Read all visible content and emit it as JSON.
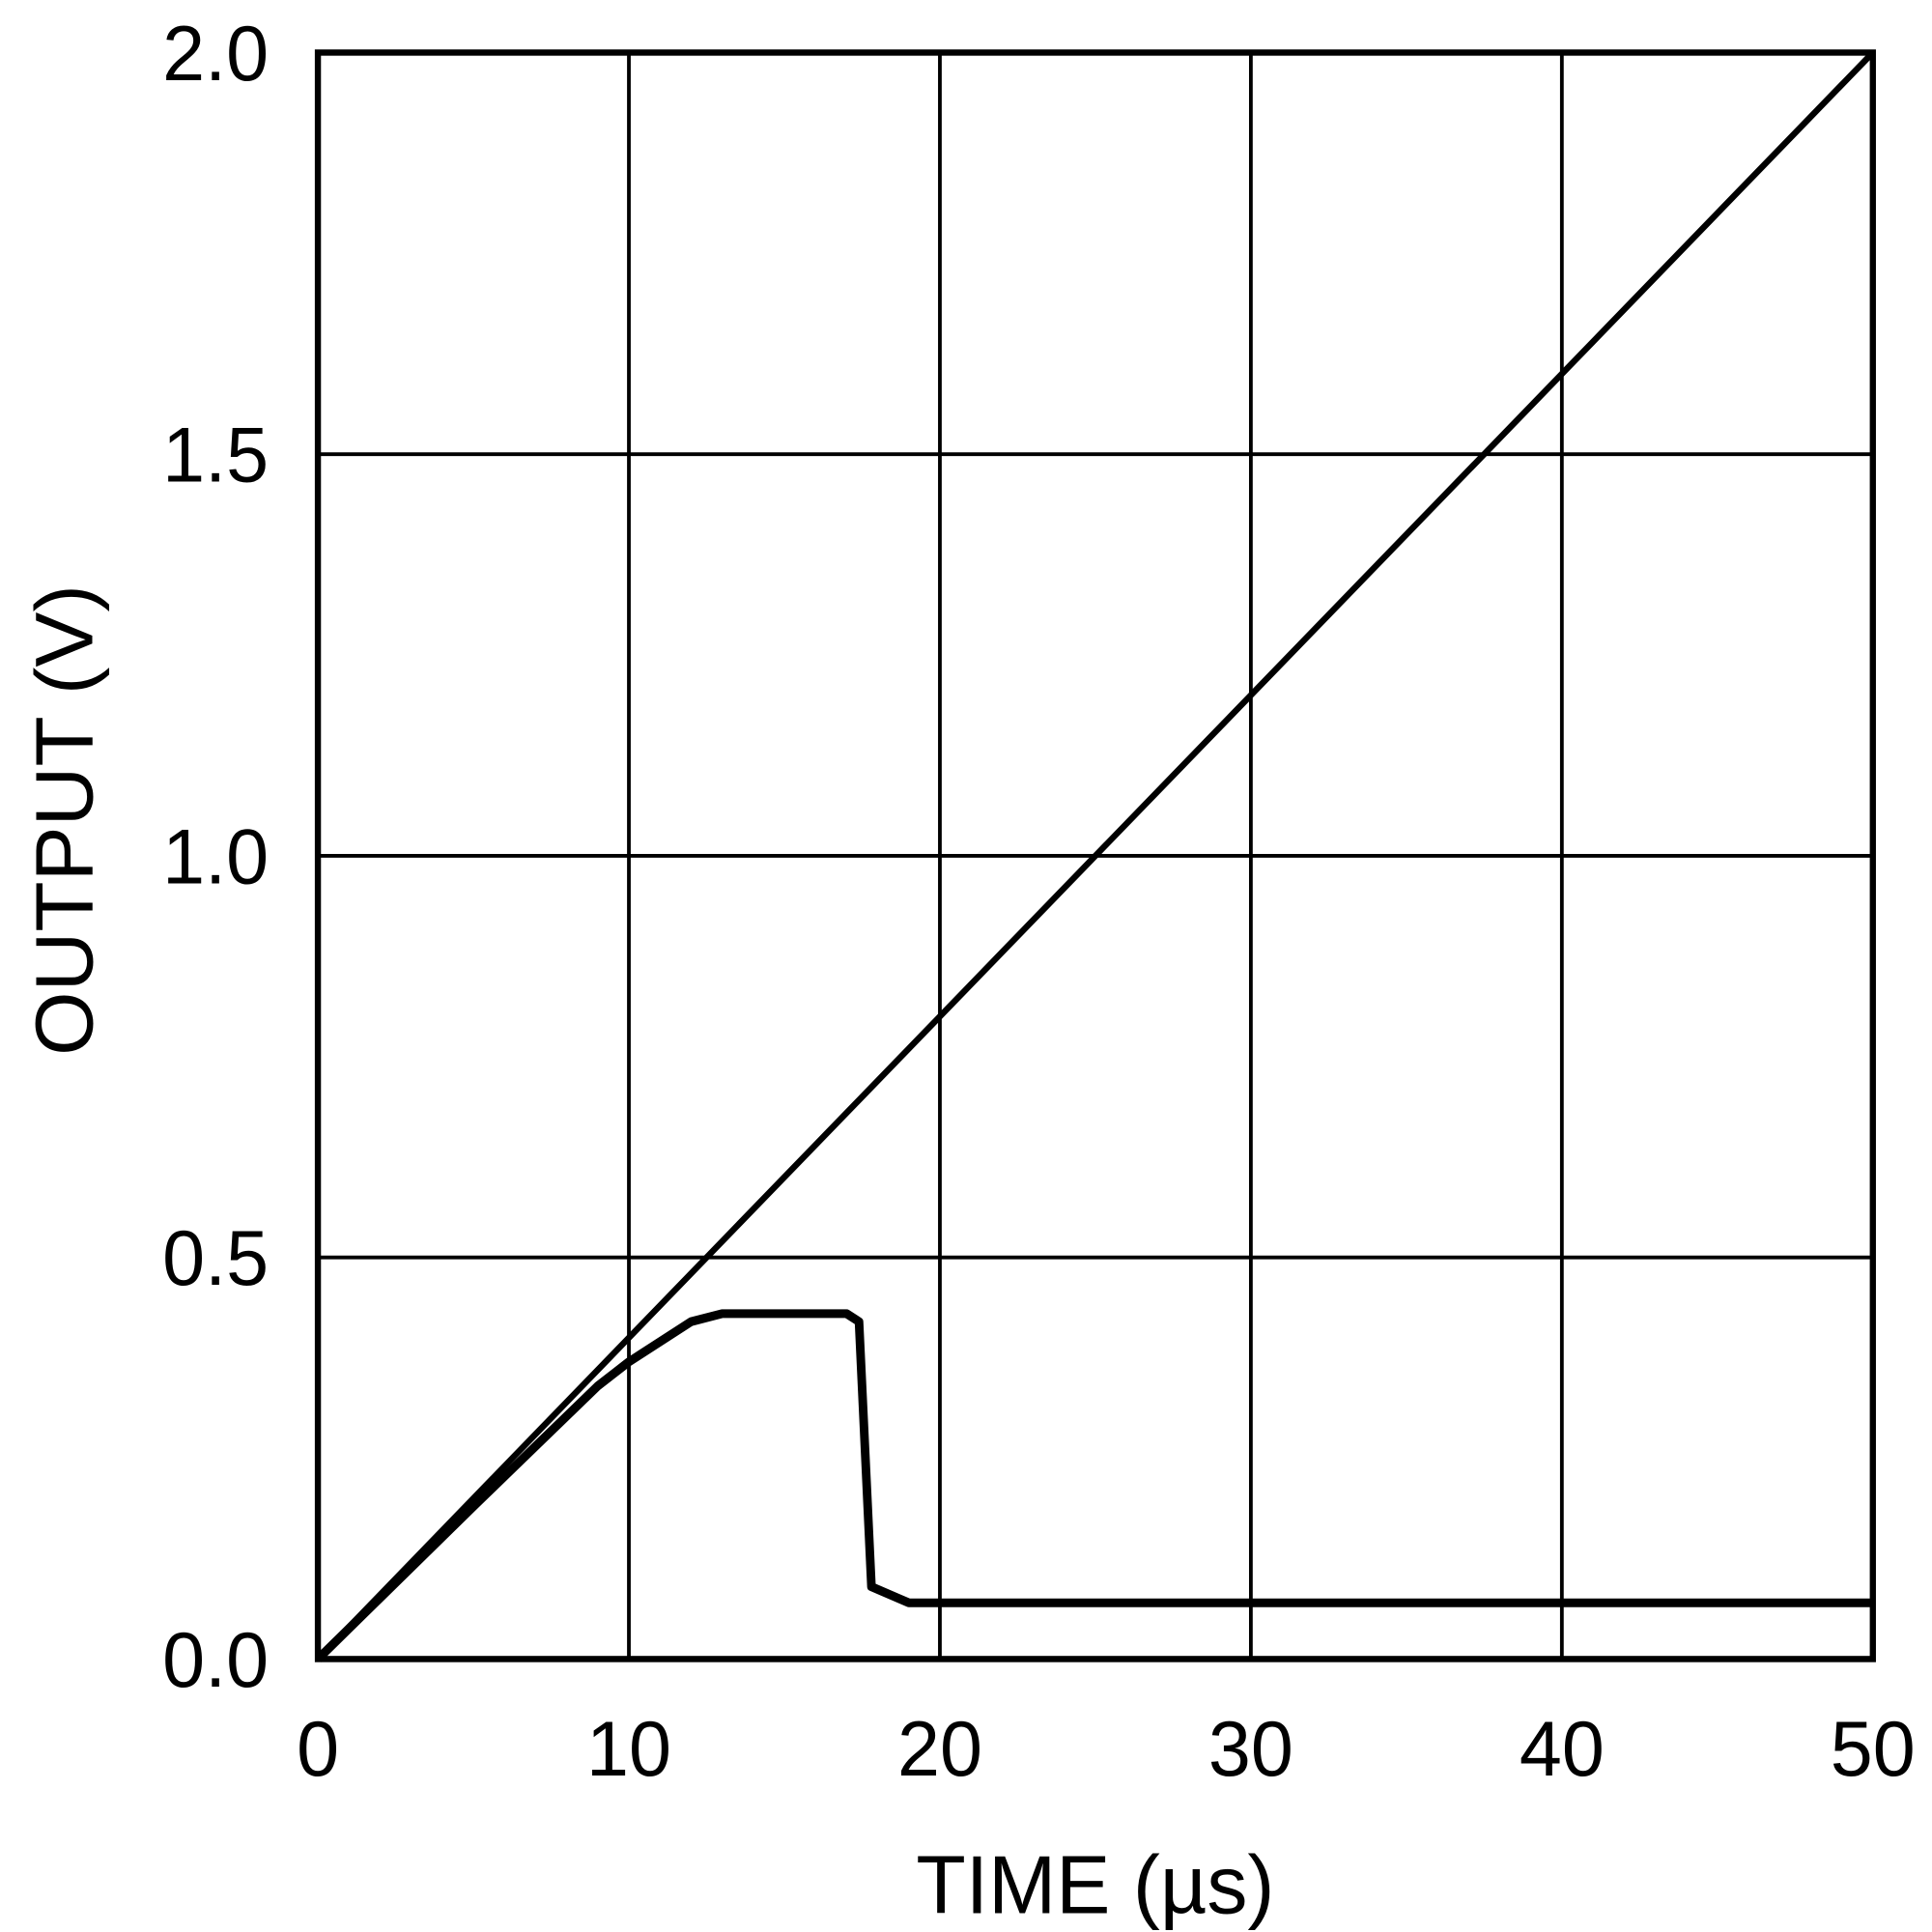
{
  "chart_data": {
    "type": "line",
    "title": "",
    "xlabel": "TIME (µs)",
    "ylabel": "OUTPUT (V)",
    "xlim": [
      0,
      50
    ],
    "ylim": [
      0,
      2.0
    ],
    "xticks": [
      "0",
      "10",
      "20",
      "30",
      "40",
      "50"
    ],
    "yticks": [
      "0.0",
      "0.5",
      "1.0",
      "1.5",
      "2.0"
    ],
    "grid": true,
    "line_color": "#000000",
    "series": [
      {
        "x": [
          0,
          50
        ],
        "y": [
          0,
          2.0
        ]
      },
      {
        "x": [
          0,
          5,
          9,
          10,
          12,
          13,
          17,
          17.4,
          17.8,
          19,
          20,
          50
        ],
        "y": [
          0,
          0.19,
          0.34,
          0.37,
          0.42,
          0.43,
          0.43,
          0.42,
          0.09,
          0.07,
          0.07,
          0.07
        ]
      }
    ]
  }
}
